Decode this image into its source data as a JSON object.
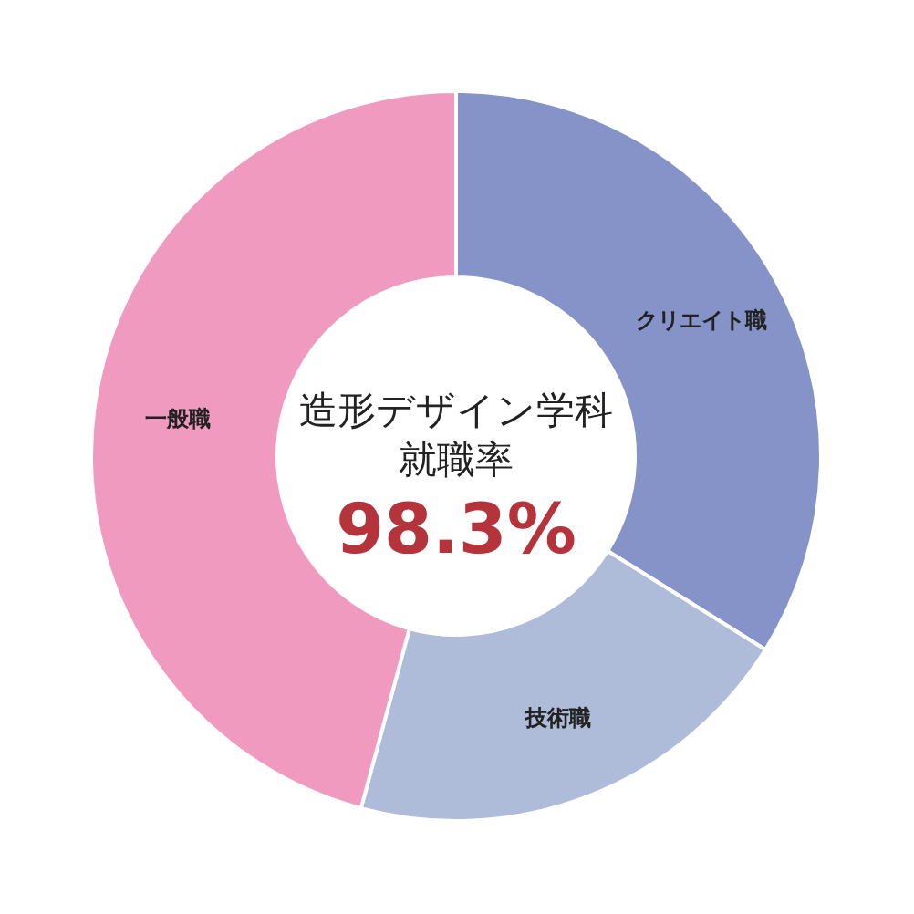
{
  "chart_data": {
    "type": "donut",
    "title": "造形デザイン学科",
    "subtitle": "就職率",
    "annotations": [
      "98.3%"
    ],
    "categories": [
      "クリエイト職",
      "技術職",
      "一般職"
    ],
    "values": [
      33.9,
      20.3,
      45.8
    ],
    "colors": [
      "#8593c8",
      "#afbcd9",
      "#f19ac0"
    ]
  }
}
